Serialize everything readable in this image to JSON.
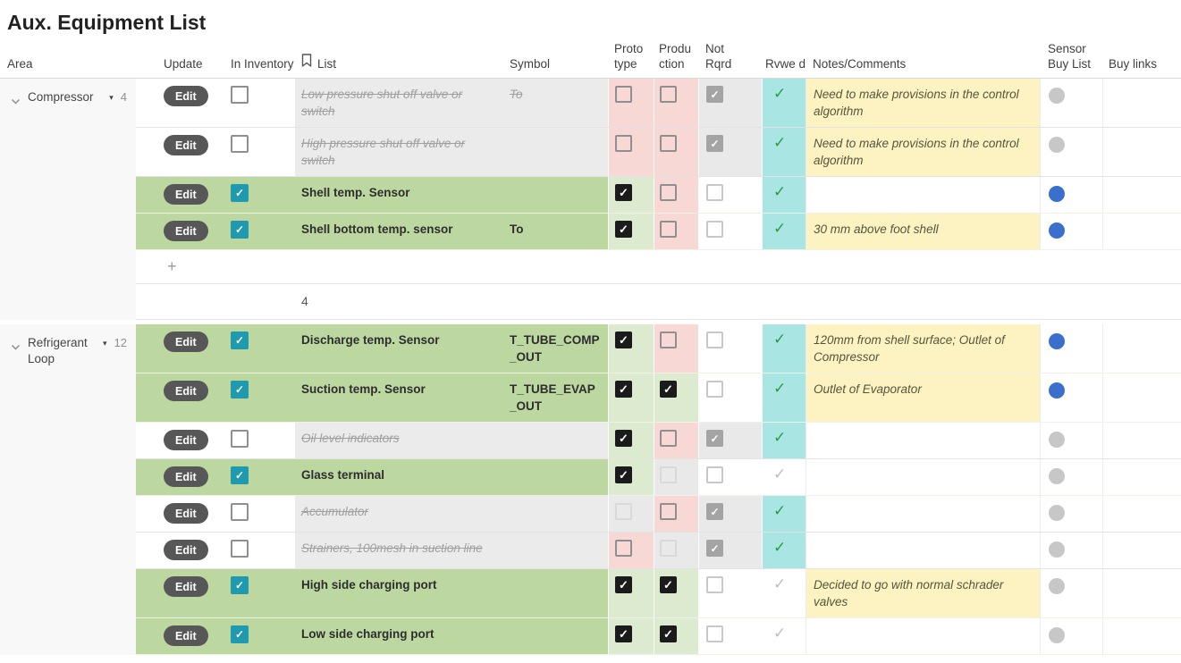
{
  "title": "Aux. Equipment List",
  "header": {
    "area": "Area",
    "update": "Update",
    "in_inventory": "In Inventory",
    "list": "List",
    "symbol": "Symbol",
    "prototype": "Proto type",
    "production": "Produ ction",
    "not_rqrd": "Not Rqrd",
    "rvwed": "Rvwe d",
    "notes": "Notes/Comments",
    "sensor_buy_list": "Sensor Buy List",
    "buy_links": "Buy links"
  },
  "buttons": {
    "edit_label": "Edit",
    "add_row_label": "+"
  },
  "icons": {
    "check": "✓",
    "caret_down": "▾"
  },
  "colors": {
    "row_green": "#bdd7a1",
    "row_gray": "#ebebeb",
    "cell_pink": "#f8d8d5",
    "cell_green": "#dcead0",
    "cell_gray": "#e9e9e9",
    "cell_cyan": "#a9e5e2",
    "cell_yellow": "#fcf2c2",
    "check_teal": "#1f9aae",
    "check_green": "#2d9b45",
    "dot_blue": "#3a6fcd",
    "dot_gray": "#c7c7c7",
    "edit_button": "#575757"
  },
  "groups": [
    {
      "name": "Compressor",
      "count": "4",
      "summary_count": "4",
      "add_row": true,
      "rows": [
        {
          "list": "Low pressure shut off valve or switch",
          "style": "struck",
          "symbol": "To",
          "in_inventory": false,
          "prototype": "pink:unchecked",
          "production": "pink:unchecked",
          "not_rqrd": "gray:checked-gray",
          "rvwed": "yes",
          "notes": "Need to make provisions in the control algorithm",
          "buy_dot": "gray",
          "band": "gray"
        },
        {
          "list": "High pressure shut off valve or switch",
          "style": "struck",
          "symbol": "",
          "in_inventory": false,
          "prototype": "pink:unchecked",
          "production": "pink:unchecked",
          "not_rqrd": "gray:checked-gray",
          "rvwed": "yes",
          "notes": "Need to make provisions in the control algorithm",
          "buy_dot": "gray",
          "band": "gray"
        },
        {
          "list": "Shell temp. Sensor",
          "style": "bold",
          "symbol": "",
          "in_inventory": true,
          "prototype": "green:checked",
          "production": "pink:unchecked",
          "not_rqrd": "white:unchecked-light",
          "rvwed": "yes",
          "notes": "",
          "buy_dot": "blue",
          "band": "green"
        },
        {
          "list": "Shell bottom temp. sensor",
          "style": "bold",
          "symbol": "To",
          "in_inventory": true,
          "prototype": "green:checked",
          "production": "pink:unchecked",
          "not_rqrd": "white:unchecked-light",
          "rvwed": "yes",
          "notes": "30 mm above foot shell",
          "buy_dot": "blue",
          "band": "green"
        }
      ]
    },
    {
      "name": "Refrigerant Loop",
      "count": "12",
      "summary_count": null,
      "add_row": false,
      "rows": [
        {
          "list": "Discharge temp. Sensor",
          "style": "bold",
          "symbol": "T_TUBE_COMP_OUT",
          "in_inventory": true,
          "prototype": "green:checked",
          "production": "pink:unchecked",
          "not_rqrd": "white:unchecked-light",
          "rvwed": "yes",
          "notes": "120mm from shell surface; Outlet of Compressor",
          "buy_dot": "blue",
          "band": "green"
        },
        {
          "list": "Suction temp. Sensor",
          "style": "bold",
          "symbol": "T_TUBE_EVAP_OUT",
          "in_inventory": true,
          "prototype": "green:checked",
          "production": "green:checked",
          "not_rqrd": "white:unchecked-light",
          "rvwed": "yes",
          "notes": "Outlet of Evaporator",
          "buy_dot": "blue",
          "band": "green"
        },
        {
          "list": "Oil level indicators",
          "style": "struck",
          "symbol": "",
          "in_inventory": false,
          "prototype": "green:checked",
          "production": "pink:unchecked",
          "not_rqrd": "gray:checked-gray",
          "rvwed": "yes",
          "notes": "",
          "buy_dot": "gray",
          "band": "gray"
        },
        {
          "list": "Glass terminal",
          "style": "bold",
          "symbol": "",
          "in_inventory": true,
          "prototype": "green:checked",
          "production": "gray:unchecked-faint",
          "not_rqrd": "white:unchecked-light",
          "rvwed": "no",
          "notes": "",
          "buy_dot": "gray",
          "band": "green"
        },
        {
          "list": "Accumulator",
          "style": "struck",
          "symbol": "",
          "in_inventory": false,
          "prototype": "gray:unchecked-faint",
          "production": "pink:unchecked",
          "not_rqrd": "gray:checked-gray",
          "rvwed": "yes",
          "notes": "",
          "buy_dot": "gray",
          "band": "gray"
        },
        {
          "list": "Strainers, 100mesh in suction line",
          "style": "struck",
          "symbol": "",
          "in_inventory": false,
          "prototype": "pink:unchecked",
          "production": "gray:unchecked-faint",
          "not_rqrd": "gray:checked-gray",
          "rvwed": "yes",
          "notes": "",
          "buy_dot": "gray",
          "band": "gray"
        },
        {
          "list": "High side charging port",
          "style": "bold",
          "symbol": "",
          "in_inventory": true,
          "prototype": "green:checked",
          "production": "green:checked",
          "not_rqrd": "white:unchecked-light",
          "rvwed": "no",
          "notes": "Decided to go with normal schrader valves",
          "buy_dot": "gray",
          "band": "green"
        },
        {
          "list": "Low side charging port",
          "style": "bold",
          "symbol": "",
          "in_inventory": true,
          "prototype": "green:checked",
          "production": "green:checked",
          "not_rqrd": "white:unchecked-light",
          "rvwed": "no",
          "notes": "",
          "buy_dot": "gray",
          "band": "green"
        }
      ]
    }
  ]
}
